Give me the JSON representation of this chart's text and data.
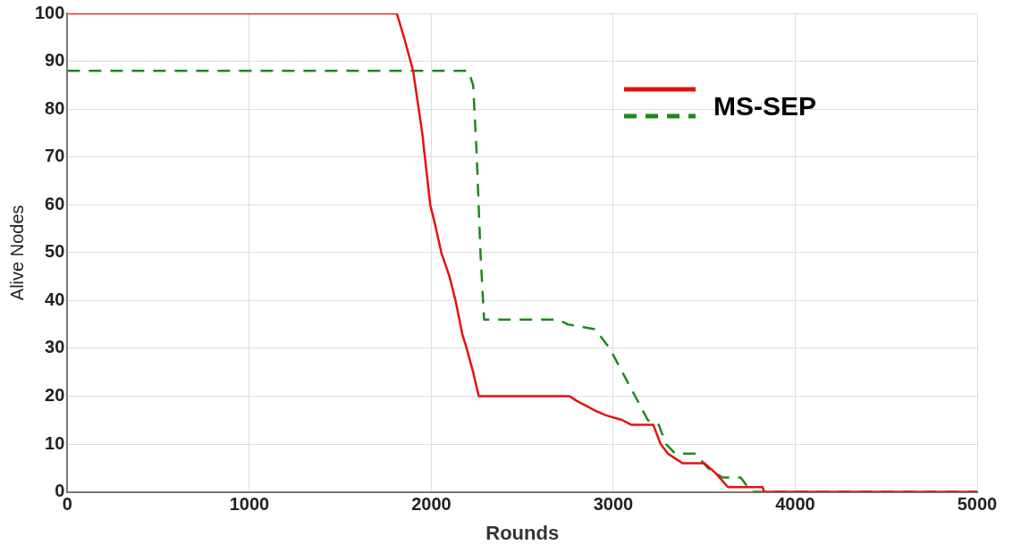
{
  "chart_data": {
    "type": "line",
    "xlabel": "Rounds",
    "ylabel": "Alive Nodes",
    "xlim": [
      0,
      5000
    ],
    "xticks": [
      0,
      1000,
      2000,
      3000,
      4000,
      5000
    ],
    "ylim": [
      0,
      100
    ],
    "yticks": [
      0,
      10,
      20,
      30,
      40,
      50,
      60,
      70,
      80,
      90,
      100
    ],
    "grid": true,
    "legend": "top right",
    "marker": "none",
    "series": [
      {
        "color": "#e8100c",
        "line_style": "solid",
        "x": [
          0,
          1810,
          1850,
          1900,
          1950,
          1994,
          2020,
          2055,
          2100,
          2133,
          2170,
          2194,
          2230,
          2261,
          2760,
          2800,
          2850,
          2900,
          2960,
          3050,
          3100,
          3220,
          3260,
          3300,
          3340,
          3380,
          3500,
          3560,
          3630,
          3820,
          3830,
          5000
        ],
        "values": [
          100,
          100,
          95,
          88,
          75,
          60,
          56,
          50,
          45,
          40,
          33,
          30,
          25,
          20,
          20,
          19,
          18,
          17,
          16,
          15,
          14,
          14,
          10,
          8,
          7,
          6,
          6,
          4,
          1,
          1,
          0,
          0
        ]
      },
      {
        "name": "MS-SEP",
        "color": "#1a8a1a",
        "line_style": "dashed",
        "x": [
          0,
          2204,
          2230,
          2250,
          2270,
          2290,
          2700,
          2750,
          2900,
          2980,
          3050,
          3120,
          3190,
          3250,
          3290,
          3340,
          3450,
          3520,
          3600,
          3700,
          3760,
          5000
        ],
        "values": [
          88,
          88,
          85,
          70,
          50,
          36,
          36,
          35,
          34,
          30,
          25,
          20,
          15,
          14,
          10,
          8,
          8,
          5,
          3,
          3,
          0,
          0
        ]
      }
    ]
  }
}
